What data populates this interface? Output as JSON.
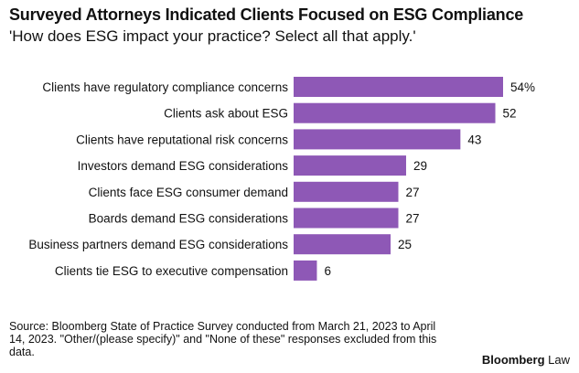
{
  "header": {
    "title": "Surveyed Attorneys Indicated Clients Focused on ESG Compliance",
    "subtitle": "'How does ESG impact your practice? Select all that apply.'"
  },
  "footer": {
    "source": "Source: Bloomberg State of Practice Survey conducted from March 21, 2023 to April 14, 2023. \"Other/(please specify)\" and \"None of these\" responses excluded from this data.",
    "brand_bold": "Bloomberg",
    "brand_light": " Law"
  },
  "colors": {
    "bar": "#8e58b6",
    "text": "#111111"
  },
  "chart_data": {
    "type": "bar",
    "orientation": "horizontal",
    "title": "Surveyed Attorneys Indicated Clients Focused on ESG Compliance",
    "subtitle": "'How does ESG impact your practice? Select all that apply.'",
    "categories": [
      "Clients have regulatory compliance concerns",
      "Clients ask about ESG",
      "Clients have reputational risk concerns",
      "Investors demand ESG considerations",
      "Clients face ESG consumer demand",
      "Boards demand ESG considerations",
      "Business partners demand ESG considerations",
      "Clients tie ESG to executive compensation"
    ],
    "values": [
      54,
      52,
      43,
      29,
      27,
      27,
      25,
      6
    ],
    "data_labels": [
      "54%",
      "52",
      "43",
      "29",
      "27",
      "27",
      "25",
      "6"
    ],
    "xlim": [
      0,
      54
    ],
    "grid": false,
    "legend": "none"
  }
}
